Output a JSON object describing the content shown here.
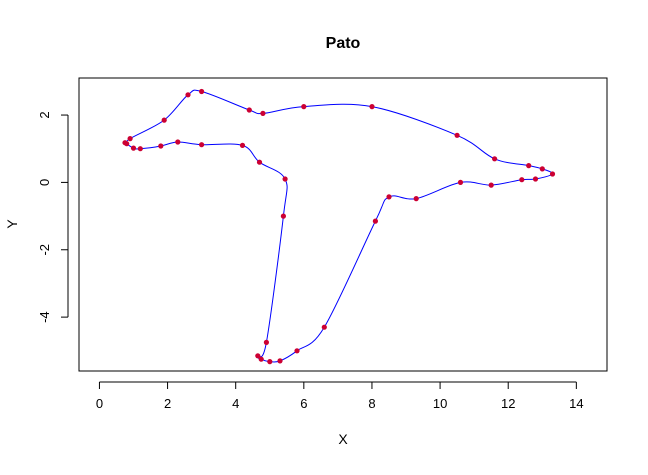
{
  "chart_data": {
    "type": "line",
    "title": "Pato",
    "xlabel": "X",
    "ylabel": "Y",
    "xlim": [
      -0.6,
      14.9
    ],
    "ylim": [
      -5.6,
      3.1
    ],
    "xticks": [
      0,
      2,
      4,
      6,
      8,
      10,
      12,
      14
    ],
    "yticks": [
      -4,
      -2,
      0,
      2
    ],
    "grid": false,
    "legend": "none",
    "line_color": "#0000ff",
    "point_color": "#cc0033",
    "series": [
      {
        "points": [
          [
            0.8,
            1.15
          ],
          [
            0.9,
            1.3
          ],
          [
            1.9,
            1.85
          ],
          [
            2.6,
            2.6
          ],
          [
            3.0,
            2.7
          ],
          [
            4.4,
            2.15
          ],
          [
            4.8,
            2.05
          ],
          [
            6.0,
            2.25
          ],
          [
            8.0,
            2.25
          ],
          [
            10.5,
            1.4
          ],
          [
            11.6,
            0.7
          ],
          [
            12.6,
            0.5
          ],
          [
            13.0,
            0.4
          ],
          [
            13.3,
            0.25
          ],
          [
            12.8,
            0.1
          ],
          [
            12.4,
            0.08
          ],
          [
            11.5,
            -0.08
          ],
          [
            10.6,
            0.0
          ],
          [
            9.3,
            -0.48
          ],
          [
            8.5,
            -0.43
          ],
          [
            8.1,
            -1.15
          ],
          [
            6.6,
            -4.3
          ],
          [
            5.8,
            -5.0
          ],
          [
            5.3,
            -5.3
          ],
          [
            5.0,
            -5.32
          ],
          [
            4.75,
            -5.25
          ],
          [
            4.65,
            -5.15
          ],
          [
            4.9,
            -4.75
          ],
          [
            5.4,
            -1.0
          ],
          [
            5.45,
            0.1
          ],
          [
            4.7,
            0.6
          ],
          [
            4.2,
            1.1
          ],
          [
            3.0,
            1.12
          ],
          [
            2.3,
            1.2
          ],
          [
            1.8,
            1.08
          ],
          [
            1.2,
            1.0
          ],
          [
            1.0,
            1.02
          ],
          [
            0.75,
            1.18
          ]
        ]
      }
    ]
  }
}
